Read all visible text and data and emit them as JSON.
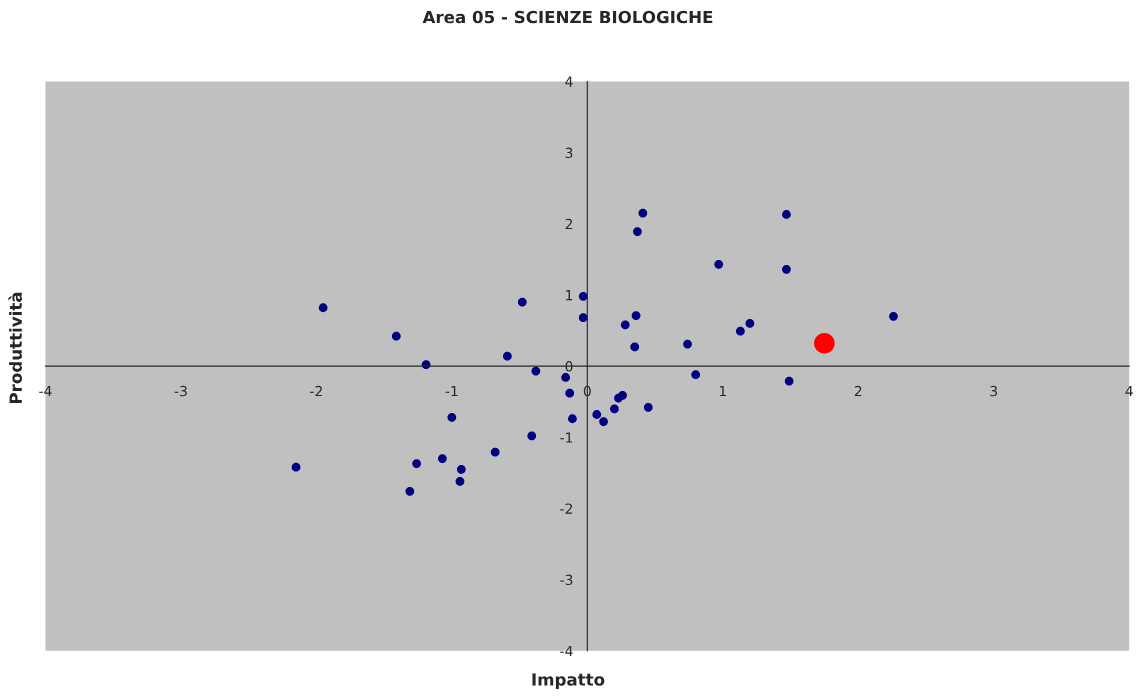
{
  "chart_data": {
    "type": "scatter",
    "title": "Area 05 - SCIENZE BIOLOGICHE",
    "xlabel": "Impatto",
    "ylabel": "Produttività",
    "xlim": [
      -4,
      4
    ],
    "ylim": [
      -4,
      4
    ],
    "xticks": [
      -4,
      -3,
      -2,
      -1,
      0,
      1,
      2,
      3,
      4
    ],
    "yticks": [
      -4,
      -3,
      -2,
      -1,
      0,
      1,
      2,
      3,
      4
    ],
    "grid": false,
    "legend": false,
    "marker": "circle",
    "series": [
      {
        "color": "#000080",
        "x": [
          -1.95,
          -1.41,
          -1.19,
          -0.48,
          -0.59,
          -0.38,
          -0.03,
          -0.03,
          -0.16,
          -0.13,
          -0.11,
          0.07,
          0.12,
          0.2,
          0.23,
          0.26,
          0.45,
          0.28,
          0.36,
          0.35,
          0.37,
          0.41,
          -1.0,
          -0.41,
          -0.68,
          -1.07,
          -1.26,
          -0.93,
          -0.94,
          -1.31,
          -2.15,
          0.74,
          0.97,
          1.47,
          1.47,
          2.26,
          1.2,
          1.13,
          0.8,
          1.49
        ],
        "values": [
          0.82,
          0.42,
          0.02,
          0.9,
          0.14,
          -0.07,
          0.98,
          0.68,
          -0.16,
          -0.38,
          -0.74,
          -0.68,
          -0.78,
          -0.6,
          -0.45,
          -0.41,
          -0.58,
          0.58,
          0.71,
          0.27,
          1.89,
          2.15,
          -0.72,
          -0.98,
          -1.21,
          -1.3,
          -1.37,
          -1.45,
          -1.62,
          -1.76,
          -1.42,
          0.31,
          1.43,
          2.13,
          1.36,
          0.7,
          0.6,
          0.49,
          -0.12,
          -0.21
        ]
      },
      {
        "color": "#ff0000",
        "x": [
          1.75
        ],
        "values": [
          0.32
        ]
      }
    ]
  }
}
